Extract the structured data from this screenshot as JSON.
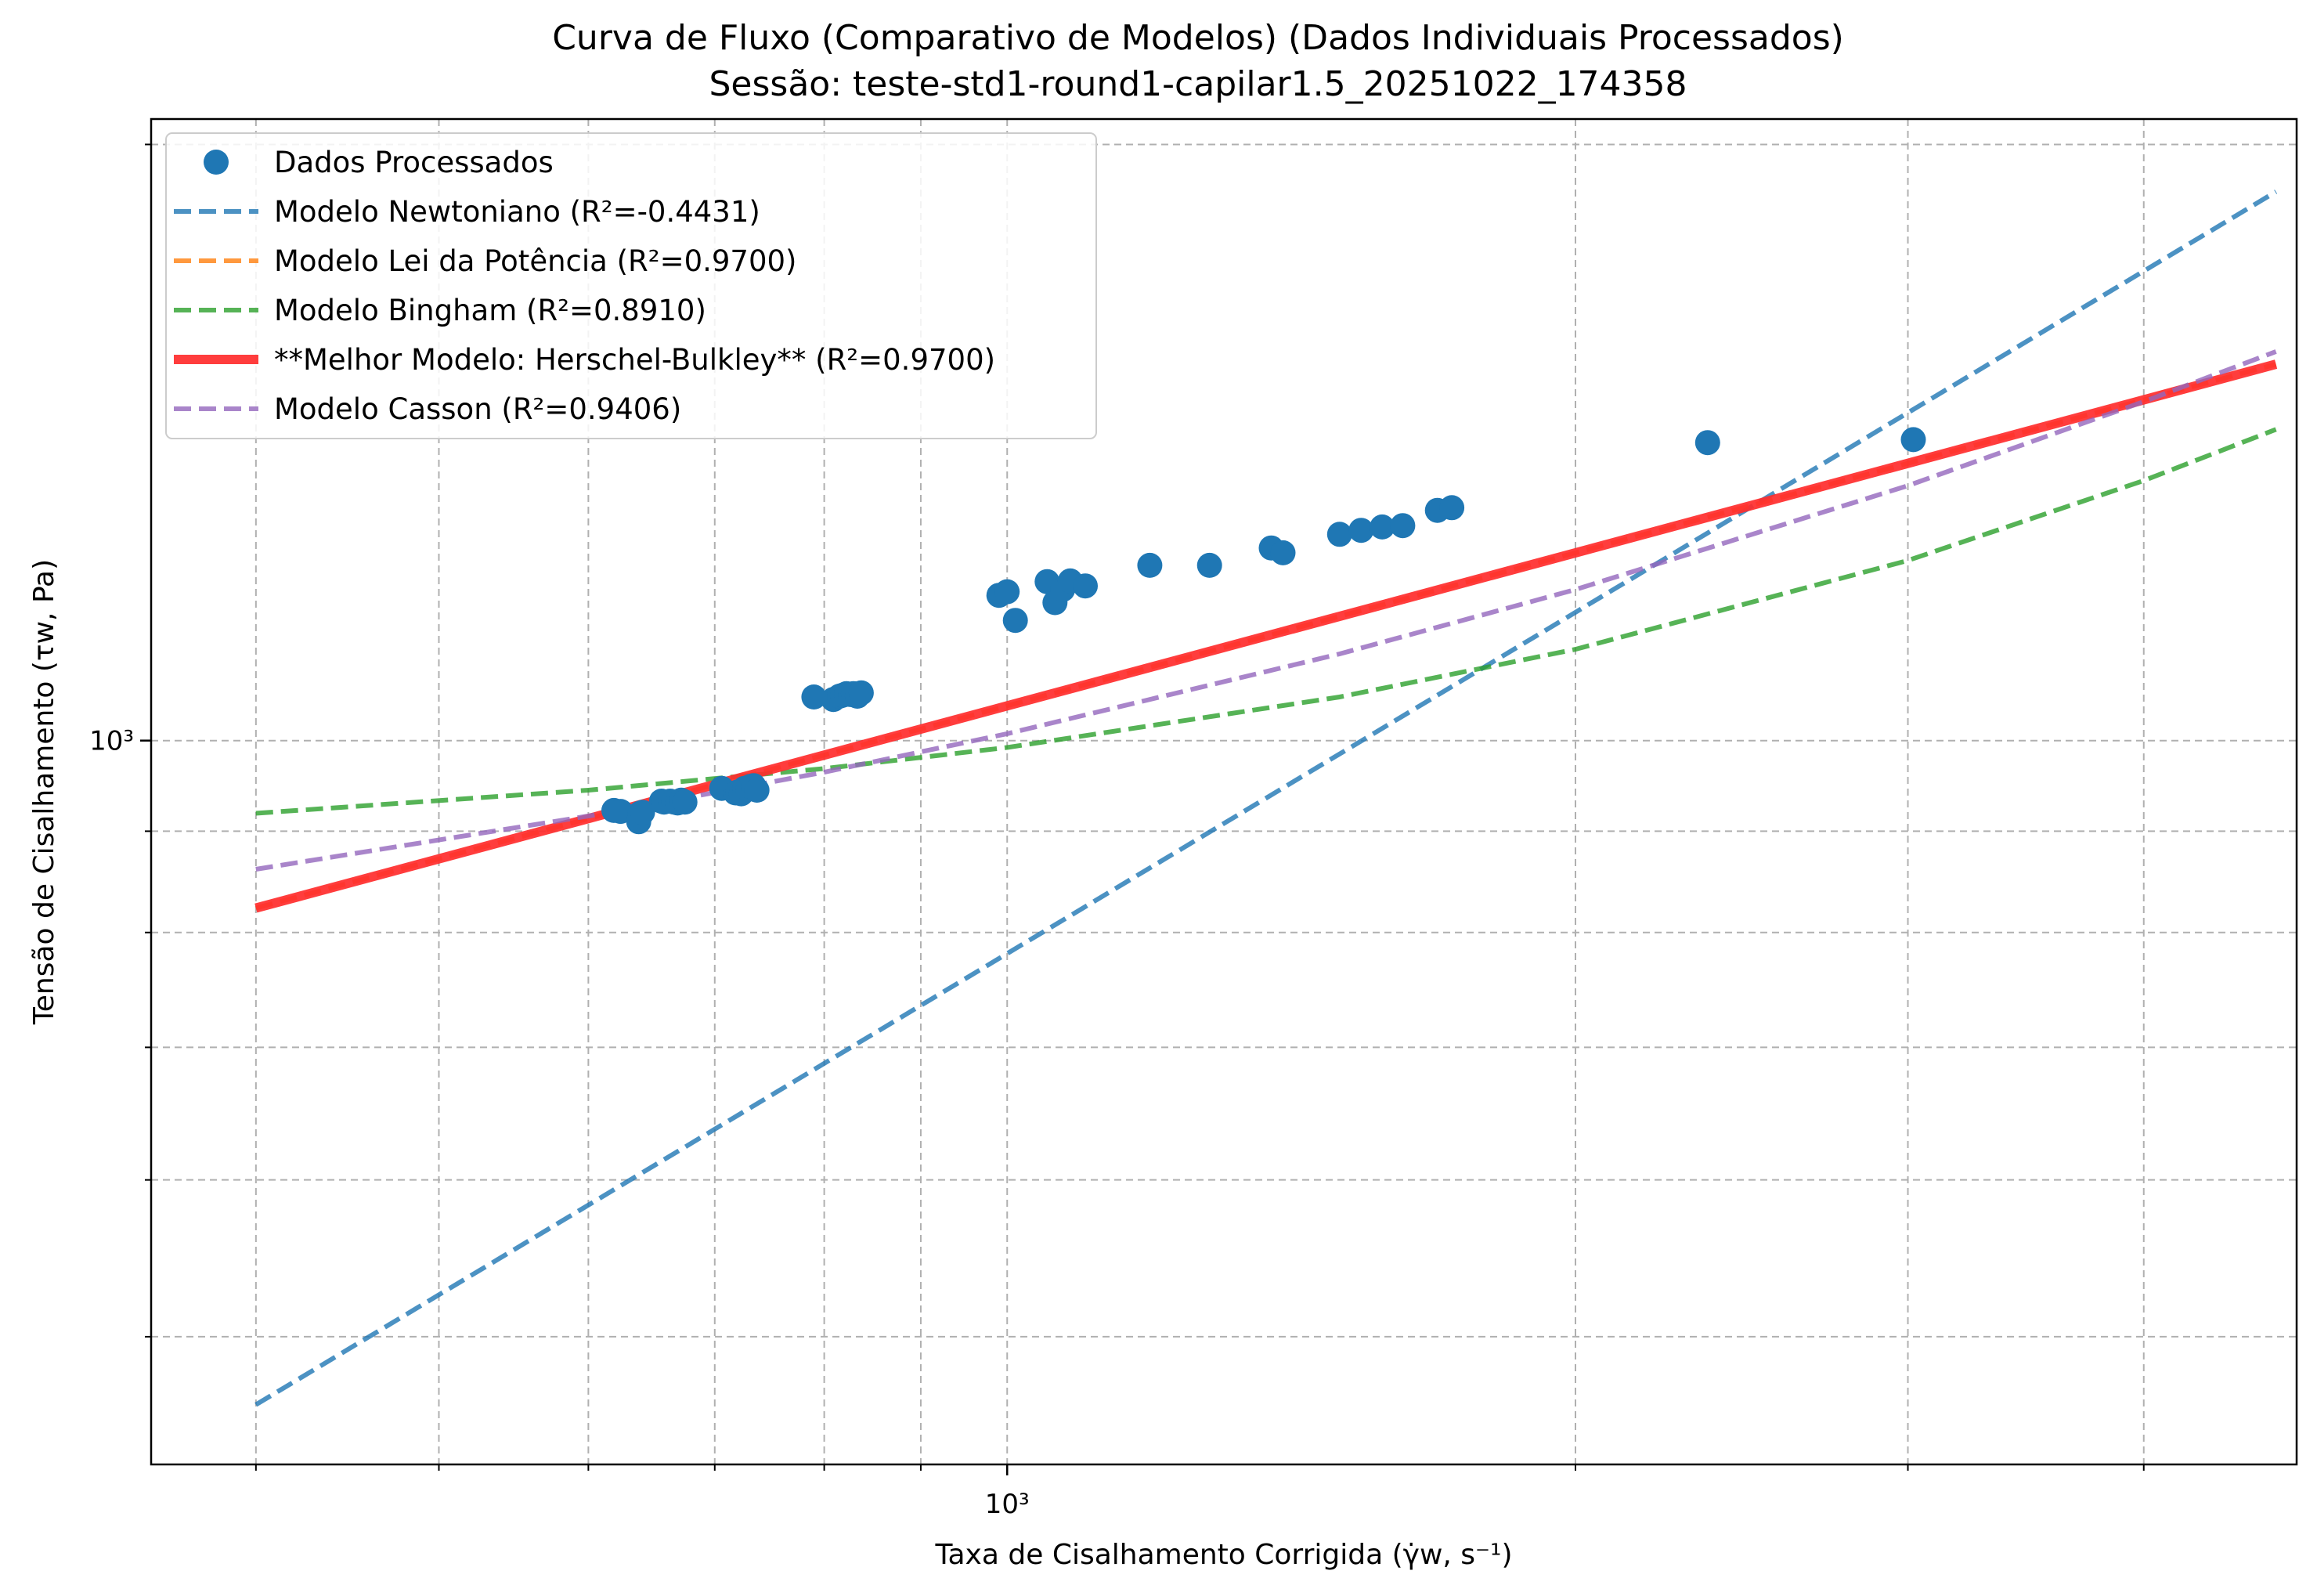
{
  "chart_data": {
    "type": "scatter",
    "title": "Curva de Fluxo (Comparativo de Modelos) (Dados Individuais Processados)",
    "subtitle": "Sessão: teste-std1-round1-capilar1.5_20251022_174358",
    "xlabel": "Taxa de Cisalhamento Corrigida (γ̇w, s⁻¹)",
    "ylabel": "Tensão de Cisalhamento (τw, Pa)",
    "xscale": "log",
    "yscale": "log",
    "xlim": [
      352,
      4820
    ],
    "ylim": [
      431,
      2060
    ],
    "x_ticks": [
      {
        "value": 1000,
        "label": "10³"
      }
    ],
    "y_ticks": [
      {
        "value": 1000,
        "label": "10³"
      }
    ],
    "x_minor_ticks": [
      400,
      500,
      600,
      700,
      800,
      900,
      2000,
      3000,
      4000
    ],
    "y_minor_ticks": [
      500,
      600,
      700,
      800,
      900,
      2000
    ],
    "grid": true,
    "legend_position": "top-left",
    "points_series": {
      "name": "Dados Processados",
      "color": "#1f77b4",
      "x": [
        619,
        624,
        639,
        638,
        641,
        656,
        658,
        663,
        666,
        669,
        672,
        675,
        706,
        718,
        720,
        723,
        726,
        729,
        731,
        734,
        737,
        790,
        809,
        815,
        818,
        822,
        826,
        829,
        833,
        837,
        990,
        1000,
        1010,
        1050,
        1060,
        1070,
        1080,
        1100,
        1190,
        1280,
        1380,
        1400,
        1500,
        1540,
        1580,
        1620,
        1690,
        1720,
        2350,
        3020
      ],
      "y": [
        922,
        921,
        919,
        910,
        920,
        932,
        931,
        932,
        931,
        930,
        933,
        931,
        946,
        941,
        942,
        940,
        946,
        945,
        948,
        949,
        944,
        1052,
        1049,
        1053,
        1054,
        1056,
        1055,
        1056,
        1053,
        1057,
        1184,
        1189,
        1150,
        1203,
        1174,
        1192,
        1204,
        1197,
        1226,
        1226,
        1251,
        1244,
        1271,
        1277,
        1282,
        1284,
        1307,
        1311,
        1414,
        1419
      ]
    },
    "line_series": [
      {
        "name": "Modelo Newtoniano (R²=-0.4431)",
        "color": "#1f77b4",
        "style": "dashed",
        "x": [
          400,
          4700
        ],
        "y": [
          462,
          1893
        ]
      },
      {
        "name": "Modelo Lei da Potência (R²=0.9700)",
        "color": "#ff7f0e",
        "style": "dashed",
        "x": [
          400,
          4700
        ],
        "y": [
          823,
          1549
        ]
      },
      {
        "name": "Modelo Bingham (R²=0.8910)",
        "color": "#2ca02c",
        "style": "dashed",
        "x": [
          400,
          600,
          800,
          1000,
          1500,
          2000,
          3000,
          4000,
          4700
        ],
        "y": [
          919,
          944,
          968,
          992,
          1052,
          1112,
          1233,
          1353,
          1436
        ]
      },
      {
        "name": "**Melhor Modelo: Herschel-Bulkley** (R²=0.9700)",
        "color": "#ff2d2d",
        "style": "solid",
        "x": [
          400,
          4700
        ],
        "y": [
          823,
          1549
        ]
      },
      {
        "name": "Modelo Casson (R²=0.9406)",
        "color": "#9467bd",
        "style": "dashed",
        "x": [
          400,
          600,
          800,
          1000,
          1500,
          2000,
          3000,
          4000,
          4700
        ],
        "y": [
          861,
          916,
          964,
          1008,
          1106,
          1192,
          1345,
          1483,
          1572
        ]
      }
    ]
  },
  "legend": {
    "items": [
      {
        "label": "Dados Processados",
        "color": "#1f77b4",
        "kind": "marker"
      },
      {
        "label": "Modelo Newtoniano (R²=-0.4431)",
        "color": "#1f77b4",
        "kind": "dashed"
      },
      {
        "label": "Modelo Lei da Potência (R²=0.9700)",
        "color": "#ff7f0e",
        "kind": "dashed"
      },
      {
        "label": "Modelo Bingham (R²=0.8910)",
        "color": "#2ca02c",
        "kind": "dashed"
      },
      {
        "label": "**Melhor Modelo: Herschel-Bulkley** (R²=0.9700)",
        "color": "#ff2d2d",
        "kind": "solid"
      },
      {
        "label": "Modelo Casson (R²=0.9406)",
        "color": "#9467bd",
        "kind": "dashed"
      }
    ]
  }
}
